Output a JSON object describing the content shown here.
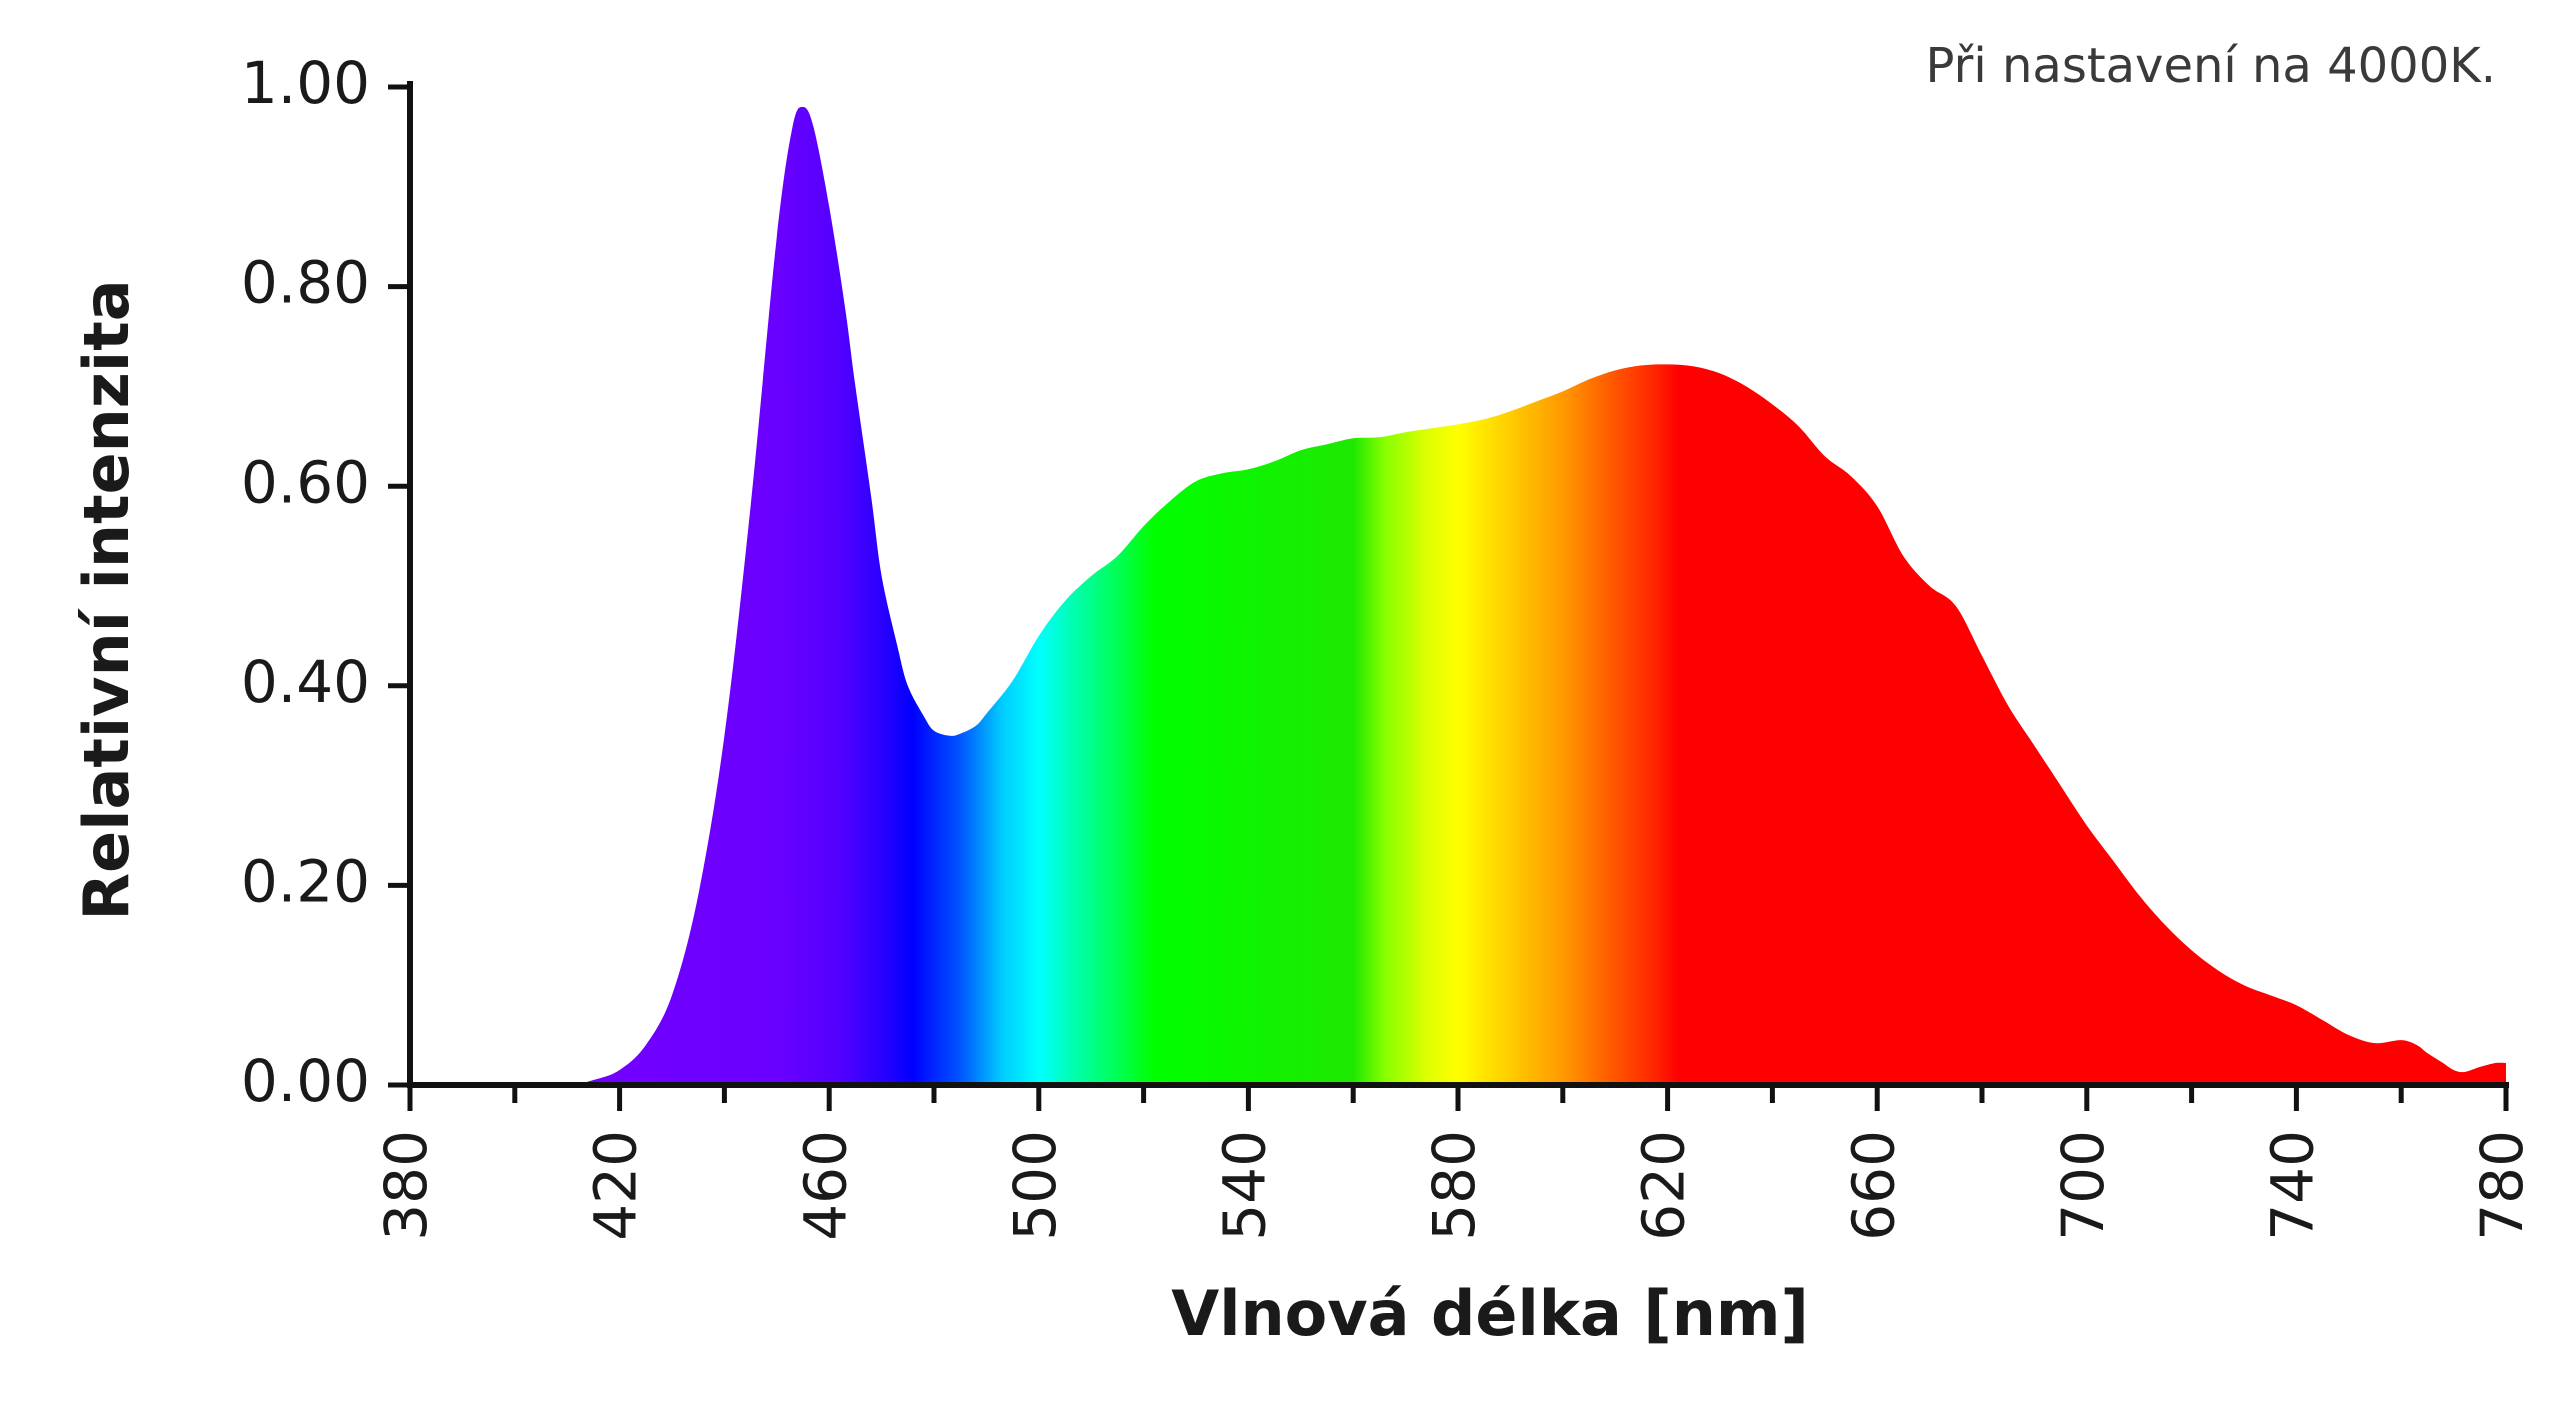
{
  "note": "Při nastavení na 4000K.",
  "chart_data": {
    "type": "area",
    "title": "",
    "xlabel": "Vlnová délka [nm]",
    "ylabel": "Relativní intenzita",
    "xlim": [
      380,
      780
    ],
    "ylim": [
      0,
      1
    ],
    "x_ticks": [
      "380",
      "420",
      "460",
      "500",
      "540",
      "580",
      "620",
      "660",
      "700",
      "740",
      "780"
    ],
    "y_ticks": [
      "0.00",
      "0.20",
      "0.40",
      "0.60",
      "0.80",
      "1.00"
    ],
    "fill": "visible-spectrum gradient (violet to red)",
    "grid": false,
    "legend": "none",
    "series": [
      {
        "x": [
          380,
          400,
          410,
          415,
          420,
          425,
          430,
          435,
          440,
          445,
          450,
          453,
          455,
          457,
          460,
          463,
          465,
          468,
          470,
          473,
          475,
          478,
          480,
          483,
          485,
          488,
          490,
          495,
          500,
          505,
          510,
          515,
          520,
          525,
          530,
          535,
          540,
          545,
          550,
          555,
          560,
          565,
          570,
          575,
          580,
          585,
          590,
          595,
          600,
          605,
          610,
          615,
          620,
          625,
          630,
          635,
          640,
          645,
          650,
          655,
          660,
          665,
          670,
          675,
          680,
          685,
          690,
          695,
          700,
          705,
          710,
          715,
          720,
          725,
          730,
          735,
          740,
          745,
          750,
          755,
          760,
          763,
          765,
          768,
          770,
          772,
          775,
          778,
          780
        ],
        "values": [
          0.0,
          0.0,
          0.0,
          0.005,
          0.015,
          0.04,
          0.09,
          0.19,
          0.35,
          0.58,
          0.85,
          0.96,
          0.98,
          0.96,
          0.88,
          0.78,
          0.7,
          0.59,
          0.51,
          0.44,
          0.4,
          0.37,
          0.355,
          0.35,
          0.352,
          0.36,
          0.372,
          0.405,
          0.45,
          0.485,
          0.51,
          0.53,
          0.56,
          0.585,
          0.605,
          0.613,
          0.617,
          0.625,
          0.636,
          0.642,
          0.648,
          0.649,
          0.654,
          0.658,
          0.662,
          0.667,
          0.675,
          0.685,
          0.695,
          0.707,
          0.716,
          0.721,
          0.722,
          0.72,
          0.713,
          0.7,
          0.682,
          0.66,
          0.63,
          0.61,
          0.58,
          0.53,
          0.5,
          0.48,
          0.43,
          0.38,
          0.34,
          0.3,
          0.26,
          0.225,
          0.19,
          0.16,
          0.135,
          0.115,
          0.1,
          0.09,
          0.08,
          0.065,
          0.05,
          0.042,
          0.045,
          0.04,
          0.032,
          0.022,
          0.015,
          0.013,
          0.018,
          0.022,
          0.022
        ]
      }
    ]
  }
}
